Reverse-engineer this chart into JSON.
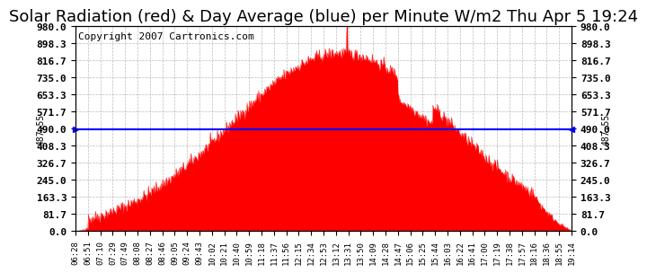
{
  "title": "Solar Radiation (red) & Day Average (blue) per Minute W/m2 Thu Apr 5 19:24",
  "copyright": "Copyright 2007 Cartronics.com",
  "y_max": 980.0,
  "y_min": 0.0,
  "y_ticks": [
    0.0,
    81.7,
    163.3,
    245.0,
    326.7,
    408.3,
    490.0,
    571.7,
    653.3,
    735.0,
    816.7,
    898.3,
    980.0
  ],
  "y_labels": [
    "0.0",
    "81.7",
    "163.3",
    "245.0",
    "326.7",
    "408.3",
    "490.0",
    "571.7",
    "653.3",
    "735.0",
    "816.7",
    "898.3",
    "980.0"
  ],
  "avg_value": 487.55,
  "avg_label": "487.55",
  "fill_color": "#FF0000",
  "line_color": "#FF0000",
  "avg_line_color": "#0000FF",
  "peak_line_color": "#FF0000",
  "background_color": "#FFFFFF",
  "grid_color": "#AAAAAA",
  "title_fontsize": 13,
  "copyright_fontsize": 8,
  "x_tick_fontsize": 6.5,
  "y_tick_fontsize": 8,
  "x_tick_labels": [
    "06:28",
    "06:51",
    "07:10",
    "07:29",
    "07:49",
    "08:08",
    "08:27",
    "08:46",
    "09:05",
    "09:24",
    "09:43",
    "10:02",
    "10:21",
    "10:40",
    "10:59",
    "11:18",
    "11:37",
    "11:56",
    "12:15",
    "12:34",
    "12:53",
    "13:12",
    "13:31",
    "13:50",
    "14:09",
    "14:28",
    "14:47",
    "15:06",
    "15:25",
    "15:44",
    "16:03",
    "16:22",
    "16:41",
    "17:00",
    "17:19",
    "17:38",
    "17:57",
    "18:16",
    "18:36",
    "18:55",
    "19:14"
  ]
}
